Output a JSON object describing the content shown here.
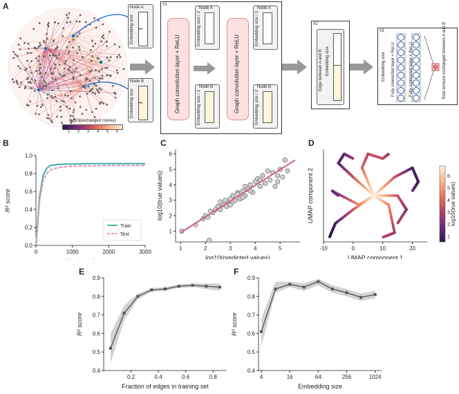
{
  "panels": {
    "A": "A",
    "B": "B",
    "C": "C",
    "D": "D",
    "E": "E",
    "F": "F"
  },
  "panelA": {
    "node_a": "Node A",
    "node_b": "Node B",
    "embedding_size": "Embedding size",
    "embedding_size_half": "Embedding size / 2",
    "gcn_label": "Graph convolution layer + ReLU",
    "step1": "#1",
    "step2": "#2",
    "step3": "#3",
    "edge_label": "Edge between A and B",
    "fc_label": "Fully connected layer + ReLU",
    "total_label": "Total amount exchanged between A and B",
    "colorbar_label": "log10(exchanged money)",
    "colorbar_ticks": [
      "1",
      "2",
      "3",
      "4",
      "5",
      "6"
    ],
    "dots": "•••"
  },
  "chart_data": [
    {
      "id": "B",
      "type": "line",
      "xlabel": "Number of epochs",
      "ylabel": "R² score",
      "xlim": [
        0,
        3000
      ],
      "ylim": [
        0,
        1
      ],
      "xticks": [
        "0",
        "1000",
        "2000",
        "3000"
      ],
      "yticks": [
        "0.0",
        "0.2",
        "0.4",
        "0.6",
        "0.8",
        "1.0"
      ],
      "series": [
        {
          "name": "Train",
          "color": "#4bb3b0",
          "x": [
            0,
            100,
            200,
            300,
            400,
            600,
            800,
            1000,
            1500,
            2000,
            2500,
            3000
          ],
          "values": [
            0,
            0.55,
            0.78,
            0.86,
            0.89,
            0.9,
            0.905,
            0.905,
            0.91,
            0.91,
            0.91,
            0.91
          ]
        },
        {
          "name": "Test",
          "color": "#e29ab6",
          "x": [
            0,
            100,
            200,
            300,
            400,
            600,
            800,
            1000,
            1500,
            2000,
            2500,
            3000
          ],
          "values": [
            0,
            0.5,
            0.72,
            0.8,
            0.84,
            0.865,
            0.875,
            0.88,
            0.885,
            0.89,
            0.89,
            0.89
          ]
        }
      ],
      "legend": "bottom-right"
    },
    {
      "id": "C",
      "type": "scatter",
      "xlabel": "log10(predicted values)",
      "ylabel": "log10(true values)",
      "xlim": [
        0.8,
        5.8
      ],
      "ylim": [
        0.3,
        6.3
      ],
      "xticks": [
        "1",
        "2",
        "3",
        "4",
        "5"
      ],
      "yticks": [
        "1",
        "2",
        "3",
        "4",
        "5",
        "6"
      ],
      "points": [
        [
          1.05,
          1.0
        ],
        [
          1.6,
          1.4
        ],
        [
          1.9,
          1.8
        ],
        [
          2.0,
          2.0
        ],
        [
          2.1,
          1.9
        ],
        [
          2.15,
          0.4
        ],
        [
          2.3,
          2.2
        ],
        [
          2.4,
          2.4
        ],
        [
          2.5,
          2.6
        ],
        [
          2.6,
          2.4
        ],
        [
          2.7,
          2.7
        ],
        [
          2.8,
          3.0
        ],
        [
          2.85,
          2.6
        ],
        [
          2.9,
          2.8
        ],
        [
          3.0,
          3.1
        ],
        [
          3.0,
          2.7
        ],
        [
          3.1,
          3.3
        ],
        [
          3.1,
          2.9
        ],
        [
          3.2,
          3.0
        ],
        [
          3.3,
          3.5
        ],
        [
          3.4,
          3.1
        ],
        [
          3.5,
          3.6
        ],
        [
          3.6,
          3.3
        ],
        [
          3.6,
          3.9
        ],
        [
          3.7,
          3.7
        ],
        [
          3.8,
          4.0
        ],
        [
          3.9,
          3.5
        ],
        [
          4.0,
          4.2
        ],
        [
          4.1,
          4.4
        ],
        [
          4.2,
          3.9
        ],
        [
          4.3,
          4.6
        ],
        [
          4.4,
          4.1
        ],
        [
          4.5,
          4.9
        ],
        [
          4.6,
          4.3
        ],
        [
          4.7,
          4.8
        ],
        [
          4.8,
          3.9
        ],
        [
          4.9,
          4.6
        ],
        [
          5.0,
          5.0
        ],
        [
          5.2,
          5.6
        ],
        [
          5.3,
          4.9
        ],
        [
          3.3,
          3.4
        ],
        [
          3.5,
          3.2
        ],
        [
          2.6,
          2.9
        ],
        [
          3.8,
          3.6
        ],
        [
          4.2,
          4.3
        ],
        [
          4.9,
          4.2
        ],
        [
          5.1,
          4.5
        ],
        [
          2.2,
          2.3
        ]
      ],
      "fit": [
        [
          1.0,
          0.9
        ],
        [
          5.6,
          5.6
        ]
      ]
    },
    {
      "id": "D",
      "type": "scatter",
      "xlabel": "UMAP component 1",
      "ylabel": "UMAP component 2",
      "xlim": [
        -10,
        25
      ],
      "ylim": [
        -10,
        10
      ],
      "xticks": [
        "-10",
        "0",
        "10",
        "20"
      ],
      "colorbar_label": "log10(true values)",
      "colorbar_ticks": [
        "1",
        "2",
        "3",
        "4",
        "5",
        "6"
      ]
    },
    {
      "id": "E",
      "type": "line",
      "xlabel": "Fraction of edges in training set",
      "ylabel": "R² score",
      "xlim": [
        0,
        0.9
      ],
      "ylim": [
        0.4,
        0.9
      ],
      "xticks": [
        "0.2",
        "0.4",
        "0.6",
        "0.8"
      ],
      "yticks": [
        "0.4",
        "0.5",
        "0.6",
        "0.7",
        "0.8",
        "0.9"
      ],
      "series": [
        {
          "x": [
            0.05,
            0.15,
            0.25,
            0.35,
            0.45,
            0.55,
            0.65,
            0.75,
            0.85
          ],
          "values": [
            0.52,
            0.71,
            0.8,
            0.835,
            0.84,
            0.855,
            0.86,
            0.855,
            0.85
          ],
          "lower": [
            0.44,
            0.67,
            0.785,
            0.825,
            0.83,
            0.845,
            0.85,
            0.84,
            0.83
          ],
          "upper": [
            0.6,
            0.75,
            0.815,
            0.845,
            0.85,
            0.865,
            0.87,
            0.87,
            0.87
          ]
        }
      ]
    },
    {
      "id": "F",
      "type": "line",
      "xlabel": "Embedding size",
      "ylabel": "R² score",
      "xscale": "log2",
      "xlim": [
        3.5,
        1400
      ],
      "ylim": [
        0.4,
        0.9
      ],
      "xticks": [
        "4",
        "16",
        "64",
        "256",
        "1024"
      ],
      "yticks": [
        "0.4",
        "0.5",
        "0.6",
        "0.7",
        "0.8",
        "0.9"
      ],
      "series": [
        {
          "x": [
            4,
            8,
            16,
            32,
            64,
            128,
            256,
            512,
            1024
          ],
          "values": [
            0.61,
            0.84,
            0.865,
            0.85,
            0.88,
            0.84,
            0.82,
            0.795,
            0.81
          ],
          "lower": [
            0.53,
            0.82,
            0.85,
            0.83,
            0.86,
            0.82,
            0.8,
            0.775,
            0.79
          ],
          "upper": [
            0.68,
            0.88,
            0.88,
            0.87,
            0.895,
            0.86,
            0.84,
            0.815,
            0.83
          ]
        }
      ]
    }
  ]
}
